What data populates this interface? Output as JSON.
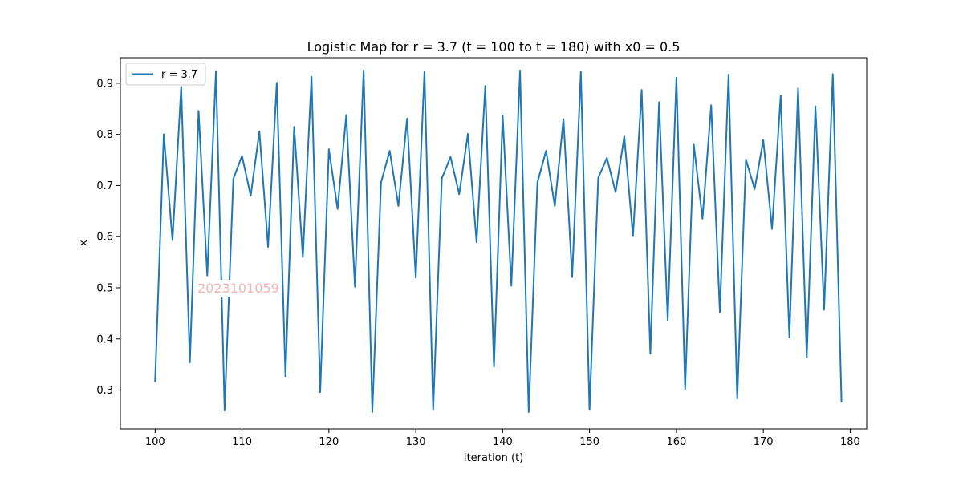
{
  "chart_data": {
    "type": "line",
    "title": "Logistic Map for r = 3.7 (t = 100 to t = 180) with x0 = 0.5",
    "xlabel": "Iteration (t)",
    "ylabel": "x",
    "xlim": [
      96,
      181.9
    ],
    "ylim": [
      0.224,
      0.95
    ],
    "x_ticks": [
      100,
      110,
      120,
      130,
      140,
      150,
      160,
      170,
      180
    ],
    "y_ticks": [
      0.3,
      0.4,
      0.5,
      0.6,
      0.7,
      0.8,
      0.9
    ],
    "x_tick_labels": [
      "100",
      "110",
      "120",
      "130",
      "140",
      "150",
      "160",
      "170",
      "180"
    ],
    "y_tick_labels": [
      "0.3",
      "0.4",
      "0.5",
      "0.6",
      "0.7",
      "0.8",
      "0.9"
    ],
    "grid": false,
    "legend_position": "top-left",
    "series": [
      {
        "name": "r = 3.7",
        "color": "#1f77b4",
        "x": [
          100,
          101,
          102,
          103,
          104,
          105,
          106,
          107,
          108,
          109,
          110,
          111,
          112,
          113,
          114,
          115,
          116,
          117,
          118,
          119,
          120,
          121,
          122,
          123,
          124,
          125,
          126,
          127,
          128,
          129,
          130,
          131,
          132,
          133,
          134,
          135,
          136,
          137,
          138,
          139,
          140,
          141,
          142,
          143,
          144,
          145,
          146,
          147,
          148,
          149,
          150,
          151,
          152,
          153,
          154,
          155,
          156,
          157,
          158,
          159,
          160,
          161,
          162,
          163,
          164,
          165,
          166,
          167,
          168,
          169,
          170,
          171,
          172,
          173,
          174,
          175,
          176,
          177,
          178,
          179
        ],
        "values": [
          0.317,
          0.8,
          0.593,
          0.893,
          0.354,
          0.846,
          0.524,
          0.924,
          0.26,
          0.713,
          0.758,
          0.68,
          0.806,
          0.58,
          0.901,
          0.327,
          0.815,
          0.56,
          0.913,
          0.296,
          0.771,
          0.654,
          0.838,
          0.502,
          0.925,
          0.257,
          0.706,
          0.768,
          0.66,
          0.831,
          0.52,
          0.923,
          0.261,
          0.714,
          0.756,
          0.683,
          0.801,
          0.589,
          0.895,
          0.346,
          0.837,
          0.504,
          0.925,
          0.257,
          0.706,
          0.768,
          0.66,
          0.83,
          0.521,
          0.923,
          0.261,
          0.715,
          0.754,
          0.687,
          0.796,
          0.601,
          0.887,
          0.371,
          0.863,
          0.437,
          0.911,
          0.302,
          0.78,
          0.635,
          0.857,
          0.452,
          0.917,
          0.283,
          0.751,
          0.693,
          0.789,
          0.615,
          0.876,
          0.403,
          0.89,
          0.364,
          0.855,
          0.457,
          0.918,
          0.277
        ]
      }
    ]
  },
  "watermark": "2023101059"
}
